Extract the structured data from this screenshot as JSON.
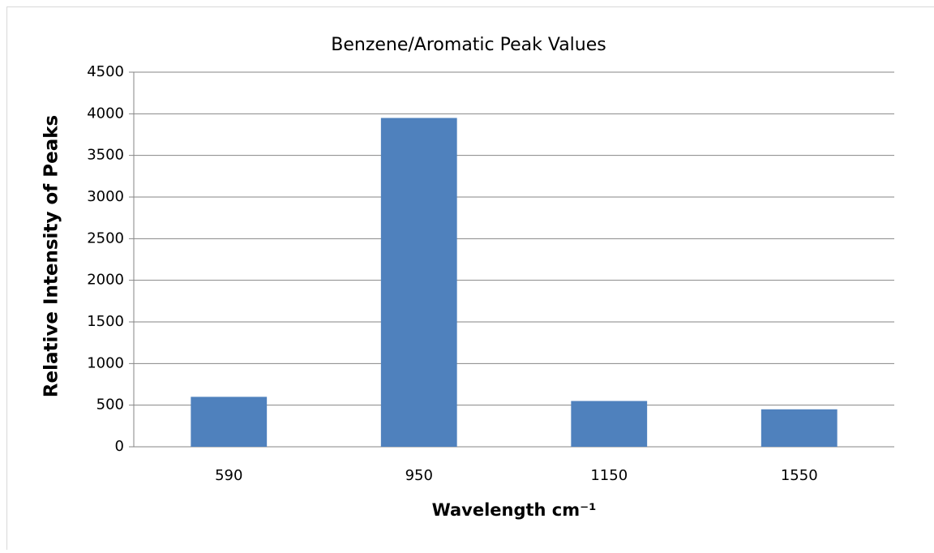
{
  "chart_data": {
    "type": "bar",
    "title": "Benzene/Aromatic Peak Values",
    "x_label": "Wavelength cm⁻¹",
    "y_label": "Relative Intensity of Peaks",
    "categories": [
      "590",
      "950",
      "1150",
      "1550"
    ],
    "values": [
      600,
      3950,
      550,
      450
    ],
    "color": "#4f81bd",
    "ylim": [
      0,
      4500
    ],
    "yticks": [
      0,
      500,
      1000,
      1500,
      2000,
      2500,
      3000,
      3500,
      4000,
      4500
    ],
    "grid": true
  }
}
